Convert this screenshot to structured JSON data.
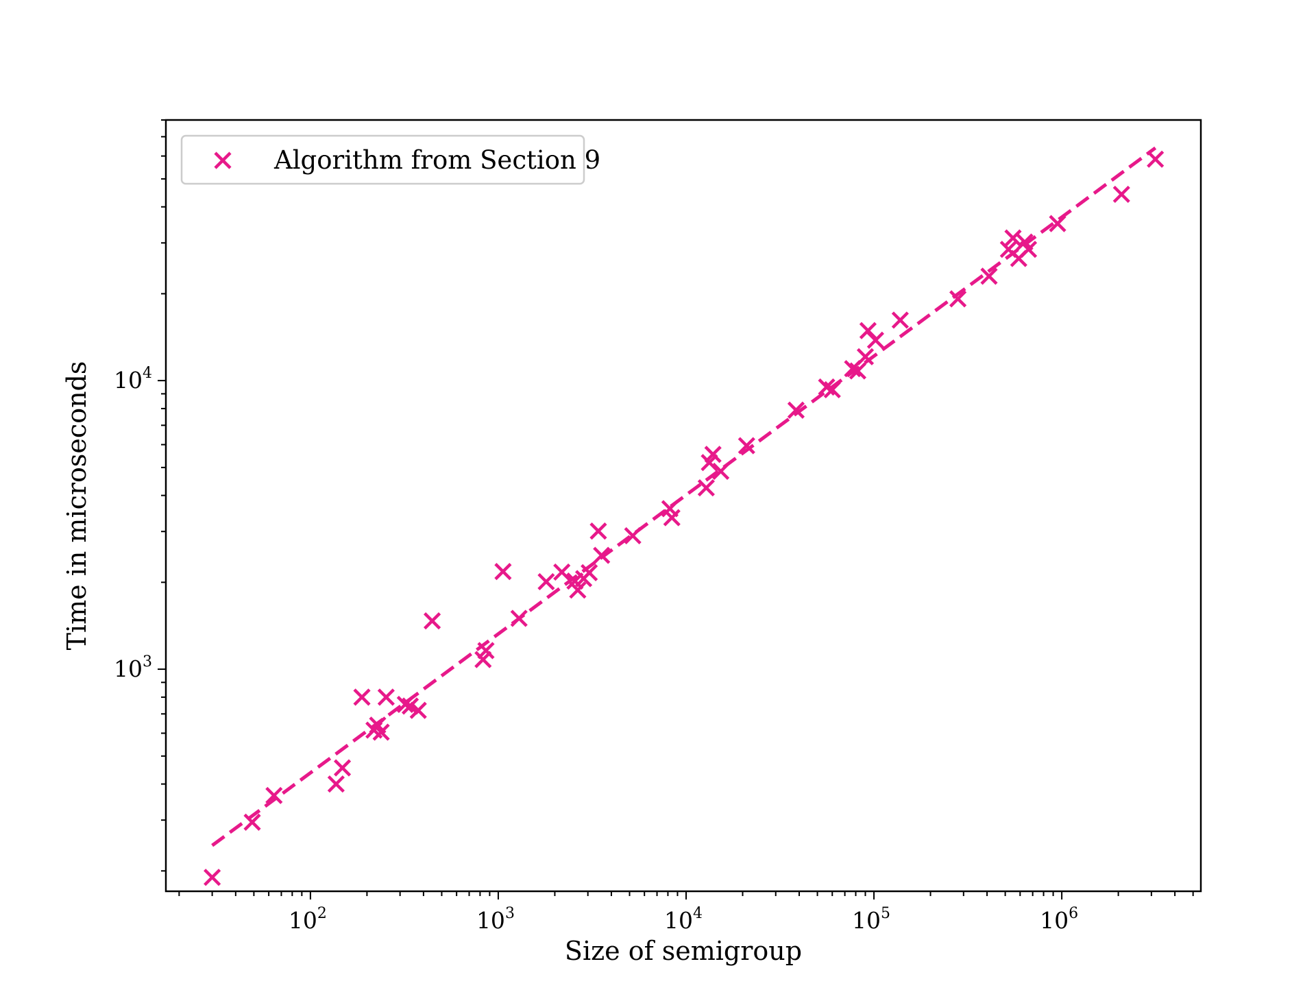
{
  "chart_data": {
    "type": "scatter",
    "xlabel": "Size of semigroup",
    "ylabel": "Time in microseconds",
    "xscale": "log",
    "yscale": "log",
    "xlim": [
      17,
      5500000
    ],
    "ylim": [
      170,
      80000
    ],
    "grid": false,
    "legend": {
      "placement": "top-left",
      "entries": [
        "Algorithm from Section 9"
      ]
    },
    "x_major_ticks": [
      {
        "value": 100,
        "base": "10",
        "exp": "2"
      },
      {
        "value": 1000,
        "base": "10",
        "exp": "3"
      },
      {
        "value": 10000,
        "base": "10",
        "exp": "4"
      },
      {
        "value": 100000,
        "base": "10",
        "exp": "5"
      },
      {
        "value": 1000000,
        "base": "10",
        "exp": "6"
      }
    ],
    "y_major_ticks": [
      {
        "value": 1000,
        "base": "10",
        "exp": "3"
      },
      {
        "value": 10000,
        "base": "10",
        "exp": "4"
      }
    ],
    "series": [
      {
        "name": "Algorithm from Section 9",
        "marker": "x",
        "color": "#e7198a",
        "points": [
          [
            30,
            190
          ],
          [
            49,
            295
          ],
          [
            64,
            365
          ],
          [
            137,
            400
          ],
          [
            148,
            455
          ],
          [
            188,
            800
          ],
          [
            218,
            615
          ],
          [
            228,
            640
          ],
          [
            238,
            605
          ],
          [
            253,
            800
          ],
          [
            320,
            755
          ],
          [
            340,
            745
          ],
          [
            375,
            720
          ],
          [
            445,
            1470
          ],
          [
            830,
            1080
          ],
          [
            860,
            1160
          ],
          [
            1060,
            2180
          ],
          [
            1290,
            1500
          ],
          [
            1800,
            2010
          ],
          [
            2180,
            2170
          ],
          [
            2560,
            2020
          ],
          [
            2650,
            1880
          ],
          [
            2850,
            2060
          ],
          [
            3050,
            2160
          ],
          [
            3410,
            3010
          ],
          [
            3550,
            2480
          ],
          [
            5200,
            2900
          ],
          [
            8200,
            3600
          ],
          [
            8400,
            3350
          ],
          [
            12800,
            4250
          ],
          [
            13300,
            5200
          ],
          [
            13900,
            5550
          ],
          [
            15300,
            4850
          ],
          [
            21000,
            5950
          ],
          [
            38500,
            7900
          ],
          [
            56000,
            9500
          ],
          [
            60000,
            9300
          ],
          [
            77000,
            11000
          ],
          [
            82000,
            10800
          ],
          [
            90000,
            12100
          ],
          [
            93000,
            14900
          ],
          [
            102000,
            13800
          ],
          [
            138000,
            16200
          ],
          [
            280000,
            19200
          ],
          [
            410000,
            23000
          ],
          [
            520000,
            28500
          ],
          [
            550000,
            31200
          ],
          [
            590000,
            26500
          ],
          [
            635000,
            30200
          ],
          [
            665000,
            28500
          ],
          [
            950000,
            35000
          ],
          [
            2080000,
            44200
          ],
          [
            3150000,
            58500
          ]
        ]
      },
      {
        "name": "",
        "type": "line",
        "style": "dashed",
        "color": "#e7198a",
        "points": [
          [
            30,
            245
          ],
          [
            3150000,
            64000
          ]
        ]
      }
    ]
  }
}
